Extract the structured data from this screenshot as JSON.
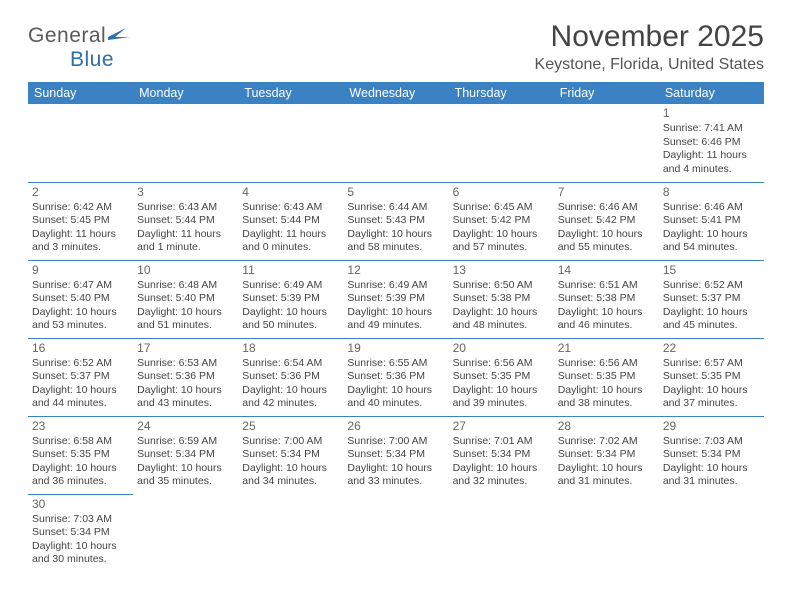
{
  "logo": {
    "text1": "General",
    "text2": "Blue"
  },
  "title": "November 2025",
  "location": "Keystone, Florida, United States",
  "colors": {
    "header_bg": "#3b82c4",
    "header_text": "#ffffff",
    "border": "#3b82c4",
    "logo_gray": "#5a5a5a",
    "logo_blue": "#2f6fa8"
  },
  "day_headers": [
    "Sunday",
    "Monday",
    "Tuesday",
    "Wednesday",
    "Thursday",
    "Friday",
    "Saturday"
  ],
  "weeks": [
    [
      null,
      null,
      null,
      null,
      null,
      null,
      {
        "n": "1",
        "sr": "Sunrise: 7:41 AM",
        "ss": "Sunset: 6:46 PM",
        "dl1": "Daylight: 11 hours",
        "dl2": "and 4 minutes."
      }
    ],
    [
      {
        "n": "2",
        "sr": "Sunrise: 6:42 AM",
        "ss": "Sunset: 5:45 PM",
        "dl1": "Daylight: 11 hours",
        "dl2": "and 3 minutes."
      },
      {
        "n": "3",
        "sr": "Sunrise: 6:43 AM",
        "ss": "Sunset: 5:44 PM",
        "dl1": "Daylight: 11 hours",
        "dl2": "and 1 minute."
      },
      {
        "n": "4",
        "sr": "Sunrise: 6:43 AM",
        "ss": "Sunset: 5:44 PM",
        "dl1": "Daylight: 11 hours",
        "dl2": "and 0 minutes."
      },
      {
        "n": "5",
        "sr": "Sunrise: 6:44 AM",
        "ss": "Sunset: 5:43 PM",
        "dl1": "Daylight: 10 hours",
        "dl2": "and 58 minutes."
      },
      {
        "n": "6",
        "sr": "Sunrise: 6:45 AM",
        "ss": "Sunset: 5:42 PM",
        "dl1": "Daylight: 10 hours",
        "dl2": "and 57 minutes."
      },
      {
        "n": "7",
        "sr": "Sunrise: 6:46 AM",
        "ss": "Sunset: 5:42 PM",
        "dl1": "Daylight: 10 hours",
        "dl2": "and 55 minutes."
      },
      {
        "n": "8",
        "sr": "Sunrise: 6:46 AM",
        "ss": "Sunset: 5:41 PM",
        "dl1": "Daylight: 10 hours",
        "dl2": "and 54 minutes."
      }
    ],
    [
      {
        "n": "9",
        "sr": "Sunrise: 6:47 AM",
        "ss": "Sunset: 5:40 PM",
        "dl1": "Daylight: 10 hours",
        "dl2": "and 53 minutes."
      },
      {
        "n": "10",
        "sr": "Sunrise: 6:48 AM",
        "ss": "Sunset: 5:40 PM",
        "dl1": "Daylight: 10 hours",
        "dl2": "and 51 minutes."
      },
      {
        "n": "11",
        "sr": "Sunrise: 6:49 AM",
        "ss": "Sunset: 5:39 PM",
        "dl1": "Daylight: 10 hours",
        "dl2": "and 50 minutes."
      },
      {
        "n": "12",
        "sr": "Sunrise: 6:49 AM",
        "ss": "Sunset: 5:39 PM",
        "dl1": "Daylight: 10 hours",
        "dl2": "and 49 minutes."
      },
      {
        "n": "13",
        "sr": "Sunrise: 6:50 AM",
        "ss": "Sunset: 5:38 PM",
        "dl1": "Daylight: 10 hours",
        "dl2": "and 48 minutes."
      },
      {
        "n": "14",
        "sr": "Sunrise: 6:51 AM",
        "ss": "Sunset: 5:38 PM",
        "dl1": "Daylight: 10 hours",
        "dl2": "and 46 minutes."
      },
      {
        "n": "15",
        "sr": "Sunrise: 6:52 AM",
        "ss": "Sunset: 5:37 PM",
        "dl1": "Daylight: 10 hours",
        "dl2": "and 45 minutes."
      }
    ],
    [
      {
        "n": "16",
        "sr": "Sunrise: 6:52 AM",
        "ss": "Sunset: 5:37 PM",
        "dl1": "Daylight: 10 hours",
        "dl2": "and 44 minutes."
      },
      {
        "n": "17",
        "sr": "Sunrise: 6:53 AM",
        "ss": "Sunset: 5:36 PM",
        "dl1": "Daylight: 10 hours",
        "dl2": "and 43 minutes."
      },
      {
        "n": "18",
        "sr": "Sunrise: 6:54 AM",
        "ss": "Sunset: 5:36 PM",
        "dl1": "Daylight: 10 hours",
        "dl2": "and 42 minutes."
      },
      {
        "n": "19",
        "sr": "Sunrise: 6:55 AM",
        "ss": "Sunset: 5:36 PM",
        "dl1": "Daylight: 10 hours",
        "dl2": "and 40 minutes."
      },
      {
        "n": "20",
        "sr": "Sunrise: 6:56 AM",
        "ss": "Sunset: 5:35 PM",
        "dl1": "Daylight: 10 hours",
        "dl2": "and 39 minutes."
      },
      {
        "n": "21",
        "sr": "Sunrise: 6:56 AM",
        "ss": "Sunset: 5:35 PM",
        "dl1": "Daylight: 10 hours",
        "dl2": "and 38 minutes."
      },
      {
        "n": "22",
        "sr": "Sunrise: 6:57 AM",
        "ss": "Sunset: 5:35 PM",
        "dl1": "Daylight: 10 hours",
        "dl2": "and 37 minutes."
      }
    ],
    [
      {
        "n": "23",
        "sr": "Sunrise: 6:58 AM",
        "ss": "Sunset: 5:35 PM",
        "dl1": "Daylight: 10 hours",
        "dl2": "and 36 minutes."
      },
      {
        "n": "24",
        "sr": "Sunrise: 6:59 AM",
        "ss": "Sunset: 5:34 PM",
        "dl1": "Daylight: 10 hours",
        "dl2": "and 35 minutes."
      },
      {
        "n": "25",
        "sr": "Sunrise: 7:00 AM",
        "ss": "Sunset: 5:34 PM",
        "dl1": "Daylight: 10 hours",
        "dl2": "and 34 minutes."
      },
      {
        "n": "26",
        "sr": "Sunrise: 7:00 AM",
        "ss": "Sunset: 5:34 PM",
        "dl1": "Daylight: 10 hours",
        "dl2": "and 33 minutes."
      },
      {
        "n": "27",
        "sr": "Sunrise: 7:01 AM",
        "ss": "Sunset: 5:34 PM",
        "dl1": "Daylight: 10 hours",
        "dl2": "and 32 minutes."
      },
      {
        "n": "28",
        "sr": "Sunrise: 7:02 AM",
        "ss": "Sunset: 5:34 PM",
        "dl1": "Daylight: 10 hours",
        "dl2": "and 31 minutes."
      },
      {
        "n": "29",
        "sr": "Sunrise: 7:03 AM",
        "ss": "Sunset: 5:34 PM",
        "dl1": "Daylight: 10 hours",
        "dl2": "and 31 minutes."
      }
    ],
    [
      {
        "n": "30",
        "sr": "Sunrise: 7:03 AM",
        "ss": "Sunset: 5:34 PM",
        "dl1": "Daylight: 10 hours",
        "dl2": "and 30 minutes."
      },
      null,
      null,
      null,
      null,
      null,
      null
    ]
  ]
}
